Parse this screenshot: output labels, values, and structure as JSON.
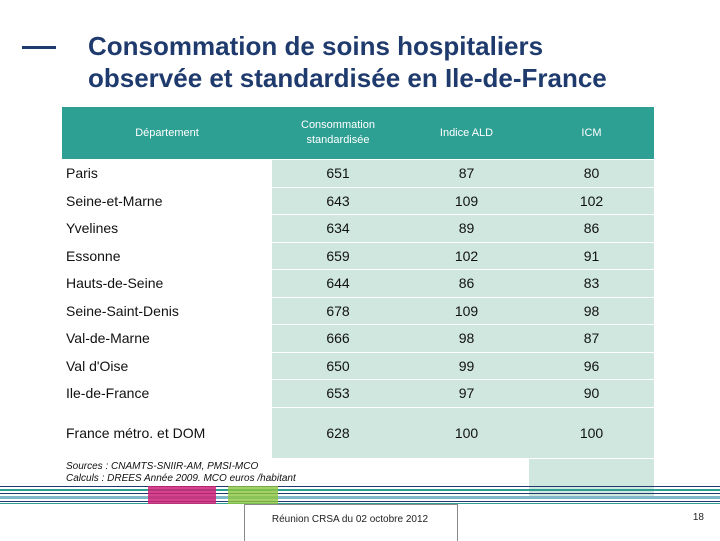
{
  "title": {
    "line1": "Consommation de soins hospitaliers",
    "line2": "observée et standardisée en Ile-de-France"
  },
  "table": {
    "headers": [
      "Département",
      "Consommation standardisée",
      "Indice ALD",
      "ICM"
    ],
    "rows": [
      {
        "dept": "Paris",
        "cons": "651",
        "ald": "87",
        "icm": "80"
      },
      {
        "dept": "Seine-et-Marne",
        "cons": "643",
        "ald": "109",
        "icm": "102"
      },
      {
        "dept": "Yvelines",
        "cons": "634",
        "ald": "89",
        "icm": "86"
      },
      {
        "dept": "Essonne",
        "cons": "659",
        "ald": "102",
        "icm": "91"
      },
      {
        "dept": "Hauts-de-Seine",
        "cons": "644",
        "ald": "86",
        "icm": "83"
      },
      {
        "dept": "Seine-Saint-Denis",
        "cons": "678",
        "ald": "109",
        "icm": "98"
      },
      {
        "dept": "Val-de-Marne",
        "cons": "666",
        "ald": "98",
        "icm": "87"
      },
      {
        "dept": "Val d'Oise",
        "cons": "650",
        "ald": "99",
        "icm": "96"
      },
      {
        "dept": "Ile-de-France",
        "cons": "653",
        "ald": "97",
        "icm": "90"
      },
      {
        "dept": "France métro. et DOM",
        "cons": "628",
        "ald": "100",
        "icm": "100"
      }
    ],
    "source_line1": "Sources : CNAMTS-SNIIR-AM, PMSI-MCO",
    "source_line2": "Calculs : DREES Année 2009. MCO euros /habitant"
  },
  "footer": {
    "text": "Réunion CRSA du 02 octobre 2012",
    "page": "18"
  },
  "colors": {
    "title": "#1f3b6e",
    "header_bg": "#2e9f93",
    "cell_bg": "#cfe7df",
    "accent_pink": "#cc2277",
    "accent_green": "#8cc63f"
  }
}
